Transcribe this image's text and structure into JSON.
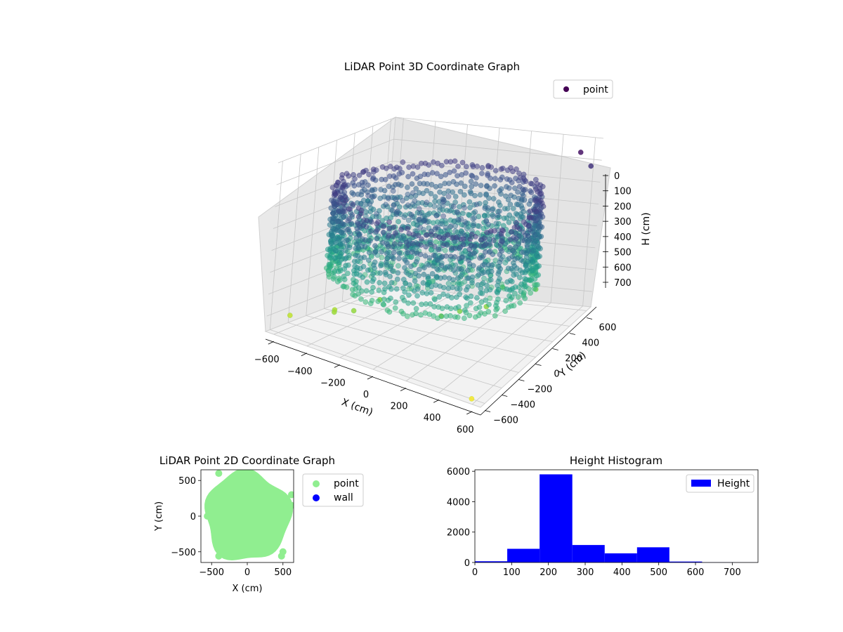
{
  "chart_data": [
    {
      "type": "scatter",
      "projection": "3d",
      "title": "LiDAR Point 3D Coordinate Graph",
      "xlabel": "X (cm)",
      "ylabel": "Y (cm)",
      "zlabel": "H (cm)",
      "xticks": [
        "−600",
        "−400",
        "−200",
        "0",
        "200",
        "400",
        "600"
      ],
      "yticks": [
        "−600",
        "−400",
        "−200",
        "0",
        "200",
        "400",
        "600"
      ],
      "zticks": [
        "0",
        "100",
        "200",
        "300",
        "400",
        "500",
        "600",
        "700"
      ],
      "xlim": [
        -650,
        650
      ],
      "ylim": [
        -650,
        650
      ],
      "zlim": [
        0,
        770
      ],
      "z_axis_inverted": true,
      "colormap": "viridis",
      "grid": true,
      "legend": {
        "position": "top-right",
        "entries": [
          {
            "name": "point",
            "color": "#440154"
          }
        ]
      },
      "shape": "ring-shaped wall of points, radius about 550 cm, heights mostly 150–550 cm, with a central structure and scattered outliers",
      "outliers": [
        {
          "x": -580,
          "y": -520,
          "h": 700
        },
        {
          "x": -430,
          "y": -300,
          "h": 680
        },
        {
          "x": -380,
          "y": -400,
          "h": 660
        },
        {
          "x": -300,
          "y": -330,
          "h": 650
        },
        {
          "x": -230,
          "y": -170,
          "h": 620
        },
        {
          "x": 120,
          "y": -120,
          "h": 640
        },
        {
          "x": 200,
          "y": -60,
          "h": 620
        },
        {
          "x": 270,
          "y": 120,
          "h": 640
        },
        {
          "x": 330,
          "y": 180,
          "h": 560
        },
        {
          "x": 460,
          "y": 330,
          "h": 600
        },
        {
          "x": 560,
          "y": 560,
          "h": 40
        },
        {
          "x": 600,
          "y": 620,
          "h": 120
        },
        {
          "x": -620,
          "y": 350,
          "h": 330
        },
        {
          "x": 580,
          "y": -620,
          "h": 760
        }
      ]
    },
    {
      "type": "scatter",
      "title": "LiDAR Point 2D Coordinate Graph",
      "xlabel": "X (cm)",
      "ylabel": "Y (cm)",
      "xticks": [
        "−500",
        "0",
        "500"
      ],
      "yticks": [
        "−500",
        "0",
        "500"
      ],
      "xlim": [
        -650,
        650
      ],
      "ylim": [
        -650,
        650
      ],
      "legend": {
        "position": "outside-right",
        "entries": [
          {
            "name": "point",
            "color": "#90ee90"
          },
          {
            "name": "wall",
            "color": "#0000ff"
          }
        ]
      },
      "shape": "filled disc of points centered near (0, 0), radius about 600 cm"
    },
    {
      "type": "bar",
      "subtype": "histogram",
      "title": "Height Histogram",
      "xticks": [
        "0",
        "100",
        "200",
        "300",
        "400",
        "500",
        "600",
        "700"
      ],
      "yticks": [
        "0",
        "2000",
        "4000",
        "6000"
      ],
      "xlim": [
        0,
        770
      ],
      "ylim": [
        0,
        6100
      ],
      "bin_edges": [
        0,
        88,
        176,
        265,
        353,
        441,
        529,
        618,
        706,
        794
      ],
      "series": [
        {
          "name": "Height",
          "color": "#0000ff",
          "values": [
            80,
            900,
            5800,
            1150,
            600,
            1000,
            60,
            10,
            5
          ]
        }
      ],
      "legend": {
        "position": "top-right"
      }
    }
  ]
}
